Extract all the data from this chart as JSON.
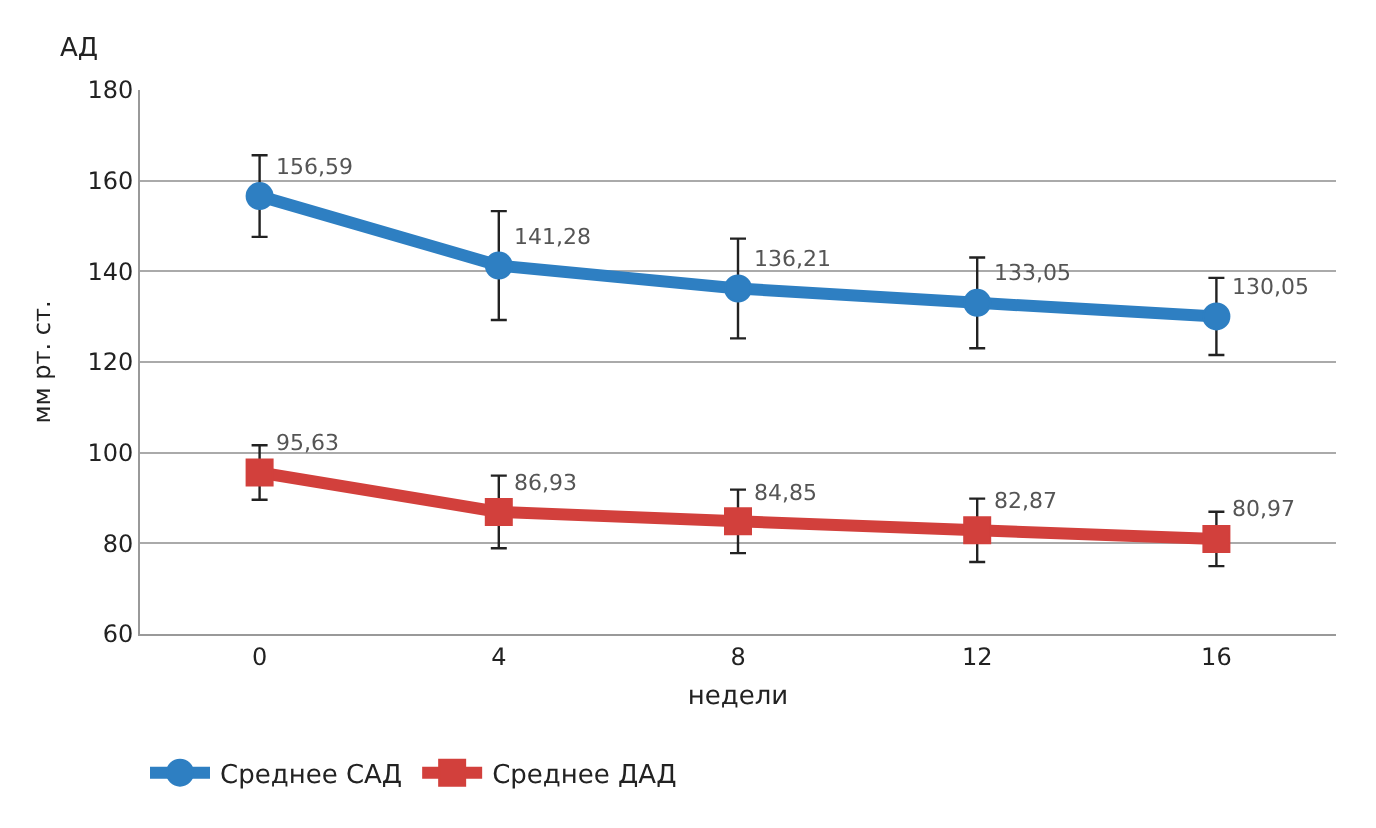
{
  "chart_data": {
    "type": "line",
    "categories": [
      "0",
      "4",
      "8",
      "12",
      "16"
    ],
    "xlabel": "недели",
    "ylabel": "мм рт. ст.",
    "annotations": [
      "АД"
    ],
    "ylim": [
      60,
      180
    ],
    "yticks": [
      60,
      80,
      100,
      120,
      140,
      160,
      180
    ],
    "grid": "y",
    "legend": "bottom left",
    "series": [
      {
        "name": "Среднее САД",
        "color": "#2e7fc2",
        "marker": "circle",
        "values": [
          156.59,
          141.28,
          136.21,
          133.05,
          130.05
        ],
        "value_labels": [
          "156,59",
          "141,28",
          "136,21",
          "133,05",
          "130,05"
        ],
        "errors": [
          9,
          12,
          11,
          10,
          8.5
        ]
      },
      {
        "name": "Среднее ДАД",
        "color": "#d2403c",
        "marker": "square",
        "values": [
          95.63,
          86.93,
          84.85,
          82.87,
          80.97
        ],
        "value_labels": [
          "95,63",
          "86,93",
          "84,85",
          "82,87",
          "80,97"
        ],
        "errors": [
          6,
          8,
          7,
          7,
          6
        ]
      }
    ]
  }
}
